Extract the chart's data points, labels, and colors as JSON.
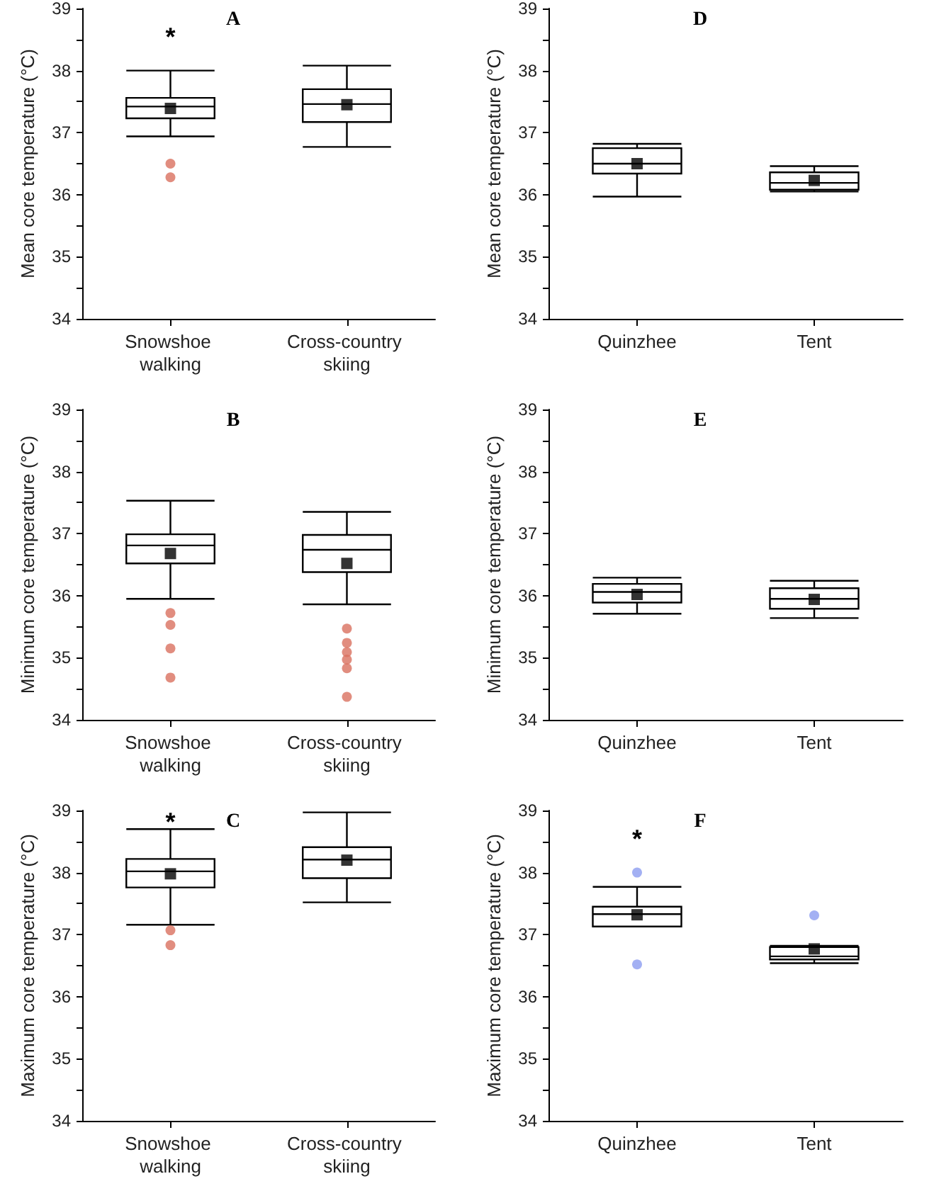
{
  "chart_data": [
    {
      "type": "box",
      "title": "A",
      "ylabel": "Mean core temperature (°C)",
      "categories": [
        "Snowshoe walking",
        "Cross-country skiing"
      ],
      "ylim": [
        34,
        39
      ],
      "yticks": [
        34,
        {
          "value": 34.5,
          "label": null
        },
        35,
        {
          "value": 35.5,
          "label": null
        },
        36,
        {
          "value": 36.5,
          "label": null
        },
        37,
        {
          "value": 37.5,
          "label": null
        },
        38,
        {
          "value": 38.5,
          "label": null
        },
        39
      ],
      "series": [
        {
          "boxes": [
            {
              "low": 36.94,
              "q1": 37.23,
              "median": 37.42,
              "q3": 37.56,
              "high": 38.0,
              "mean": 37.39
            },
            {
              "low": 36.77,
              "q1": 37.17,
              "median": 37.46,
              "q3": 37.7,
              "high": 38.08,
              "mean": 37.45
            }
          ]
        },
        {
          "type": "scatter",
          "color": "#d9705f",
          "x": [
            "Snowshoe walking",
            "Snowshoe walking"
          ],
          "values": [
            36.5,
            36.28
          ]
        }
      ],
      "annotations": [
        "*"
      ]
    },
    {
      "type": "box",
      "title": "D",
      "ylabel": "Mean core temperature (°C)",
      "categories": [
        "Quinzhee",
        "Tent"
      ],
      "ylim": [
        34,
        39
      ],
      "yticks": [
        34,
        {
          "value": 34.5,
          "label": null
        },
        35,
        {
          "value": 35.5,
          "label": null
        },
        36,
        {
          "value": 36.5,
          "label": null
        },
        37,
        {
          "value": 37.5,
          "label": null
        },
        38,
        {
          "value": 38.5,
          "label": null
        },
        39
      ],
      "series": [
        {
          "boxes": [
            {
              "low": 35.97,
              "q1": 36.34,
              "median": 36.5,
              "q3": 36.75,
              "high": 36.82,
              "mean": 36.5
            },
            {
              "low": 36.05,
              "q1": 36.08,
              "median": 36.19,
              "q3": 36.36,
              "high": 36.46,
              "mean": 36.23
            }
          ]
        }
      ]
    },
    {
      "type": "box",
      "title": "B",
      "ylabel": "Minimum core temperature (°C)",
      "categories": [
        "Snowshoe walking",
        "Cross-country skiing"
      ],
      "ylim": [
        34,
        39
      ],
      "yticks": [
        34,
        {
          "value": 34.5,
          "label": null
        },
        35,
        {
          "value": 35.5,
          "label": null
        },
        36,
        {
          "value": 36.5,
          "label": null
        },
        37,
        {
          "value": 37.5,
          "label": null
        },
        38,
        {
          "value": 38.5,
          "label": null
        },
        39
      ],
      "series": [
        {
          "boxes": [
            {
              "low": 35.95,
              "q1": 36.52,
              "median": 36.81,
              "q3": 36.99,
              "high": 37.53,
              "mean": 36.68
            },
            {
              "low": 35.86,
              "q1": 36.38,
              "median": 36.74,
              "q3": 36.98,
              "high": 37.35,
              "mean": 36.52
            }
          ]
        },
        {
          "type": "scatter",
          "color": "#d9705f",
          "x": [
            "Snowshoe walking",
            "Snowshoe walking",
            "Snowshoe walking",
            "Snowshoe walking",
            "Cross-country skiing",
            "Cross-country skiing",
            "Cross-country skiing",
            "Cross-country skiing",
            "Cross-country skiing",
            "Cross-country skiing"
          ],
          "values": [
            35.72,
            35.53,
            35.15,
            34.68,
            35.47,
            35.24,
            35.09,
            34.97,
            34.83,
            34.37
          ]
        }
      ]
    },
    {
      "type": "box",
      "title": "E",
      "ylabel": "Minimum core temperature (°C)",
      "categories": [
        "Quinzhee",
        "Tent"
      ],
      "ylim": [
        34,
        39
      ],
      "yticks": [
        34,
        {
          "value": 34.5,
          "label": null
        },
        35,
        {
          "value": 35.5,
          "label": null
        },
        36,
        {
          "value": 36.5,
          "label": null
        },
        37,
        {
          "value": 37.5,
          "label": null
        },
        38,
        {
          "value": 38.5,
          "label": null
        },
        39
      ],
      "series": [
        {
          "boxes": [
            {
              "low": 35.71,
              "q1": 35.89,
              "median": 36.06,
              "q3": 36.19,
              "high": 36.29,
              "mean": 36.02
            },
            {
              "low": 35.64,
              "q1": 35.79,
              "median": 35.95,
              "q3": 36.12,
              "high": 36.24,
              "mean": 35.94
            }
          ]
        }
      ]
    },
    {
      "type": "box",
      "title": "C",
      "ylabel": "Maximum core temperature (°C)",
      "categories": [
        "Snowshoe walking",
        "Cross-country skiing"
      ],
      "ylim": [
        34,
        39
      ],
      "yticks": [
        34,
        {
          "value": 34.5,
          "label": null
        },
        35,
        {
          "value": 35.5,
          "label": null
        },
        36,
        {
          "value": 36.5,
          "label": null
        },
        37,
        {
          "value": 37.5,
          "label": null
        },
        38,
        {
          "value": 38.5,
          "label": null
        },
        39
      ],
      "series": [
        {
          "boxes": [
            {
              "low": 37.16,
              "q1": 37.76,
              "median": 38.02,
              "q3": 38.22,
              "high": 38.7,
              "mean": 37.98
            },
            {
              "low": 37.52,
              "q1": 37.91,
              "median": 38.21,
              "q3": 38.41,
              "high": 38.97,
              "mean": 38.2
            }
          ]
        },
        {
          "type": "scatter",
          "color": "#d9705f",
          "x": [
            "Snowshoe walking",
            "Snowshoe walking"
          ],
          "values": [
            37.07,
            36.83
          ]
        }
      ],
      "annotations": [
        "*"
      ]
    },
    {
      "type": "box",
      "title": "F",
      "ylabel": "Maximum core temperature (°C)",
      "categories": [
        "Quinzhee",
        "Tent"
      ],
      "ylim": [
        34,
        39
      ],
      "yticks": [
        34,
        {
          "value": 34.5,
          "label": null
        },
        35,
        {
          "value": 35.5,
          "label": null
        },
        36,
        {
          "value": 36.5,
          "label": null
        },
        37,
        {
          "value": 37.5,
          "label": null
        },
        38,
        {
          "value": 38.5,
          "label": null
        },
        39
      ],
      "series": [
        {
          "boxes": [
            {
              "low": 37.13,
              "q1": 37.13,
              "median": 37.33,
              "q3": 37.45,
              "high": 37.77,
              "mean": 37.32
            },
            {
              "low": 36.54,
              "q1": 36.6,
              "median": 36.65,
              "q3": 36.8,
              "high": 36.82,
              "mean": 36.77
            }
          ]
        },
        {
          "type": "scatter",
          "color": "#8c9cf0",
          "x": [
            "Quinzhee",
            "Quinzhee",
            "Tent"
          ],
          "values": [
            38.0,
            36.52,
            37.31
          ]
        }
      ],
      "annotations": [
        "*"
      ]
    }
  ]
}
